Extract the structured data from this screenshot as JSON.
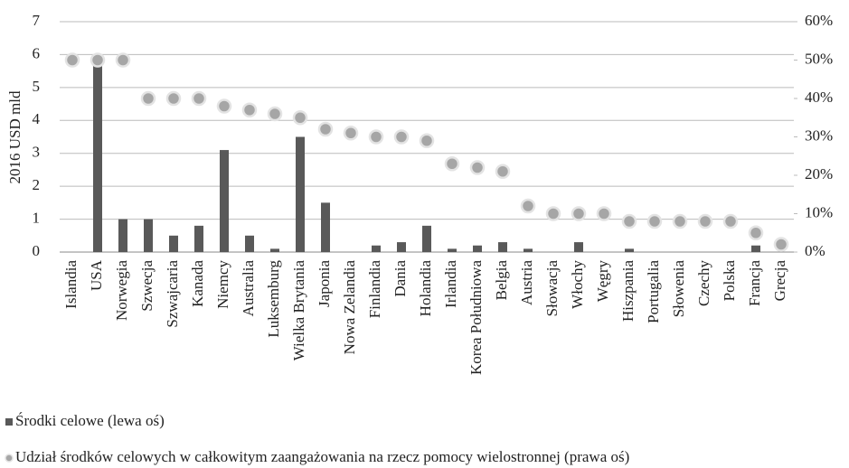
{
  "chart_data": {
    "type": "bar",
    "ylabel": "2016 USD mld",
    "categories": [
      "Islandia",
      "USA",
      "Norwegia",
      "Szwecja",
      "Szwajcaria",
      "Kanada",
      "Niemcy",
      "Australia",
      "Luksemburg",
      "Wielka Brytania",
      "Japonia",
      "Nowa Zelandia",
      "Finlandia",
      "Dania",
      "Holandia",
      "Irlandia",
      "Korea Południowa",
      "Belgia",
      "Austria",
      "Słowacja",
      "Włochy",
      "Węgry",
      "Hiszpania",
      "Portugalia",
      "Słowenia",
      "Czechy",
      "Polska",
      "Francja",
      "Grecja"
    ],
    "series": [
      {
        "name": "Środki celowe (lewa oś)",
        "type": "bar",
        "color": "#595959",
        "values": [
          0,
          5.9,
          1.0,
          1.0,
          0.5,
          0.8,
          3.1,
          0.5,
          0.1,
          3.5,
          1.5,
          0,
          0.2,
          0.3,
          0.8,
          0.1,
          0.2,
          0.3,
          0.1,
          0,
          0.3,
          0,
          0.1,
          0,
          0,
          0,
          0,
          0.2,
          0
        ]
      },
      {
        "name": "Udział środków celowych w całkowitym zaangażowania na rzecz pomocy wielostronnej (prawa oś)",
        "type": "scatter",
        "axis": "y2",
        "color": "#a6a6a6",
        "values": [
          50,
          50,
          50,
          40,
          40,
          40,
          38,
          37,
          36,
          35,
          32,
          31,
          30,
          30,
          29,
          23,
          22,
          21,
          12,
          10,
          10,
          10,
          8,
          8,
          8,
          8,
          8,
          5,
          2
        ]
      }
    ],
    "ylim": [
      0,
      7
    ],
    "yticks": [
      0,
      1,
      2,
      3,
      4,
      5,
      6,
      7
    ],
    "y2lim": [
      0,
      60
    ],
    "y2ticks": [
      {
        "value": 0,
        "label": "0%"
      },
      {
        "value": 10,
        "label": "10%"
      },
      {
        "value": 20,
        "label": "20%"
      },
      {
        "value": 30,
        "label": "30%"
      },
      {
        "value": 40,
        "label": "40%"
      },
      {
        "value": 50,
        "label": "50%"
      },
      {
        "value": 60,
        "label": "60%"
      }
    ],
    "grid": true
  }
}
